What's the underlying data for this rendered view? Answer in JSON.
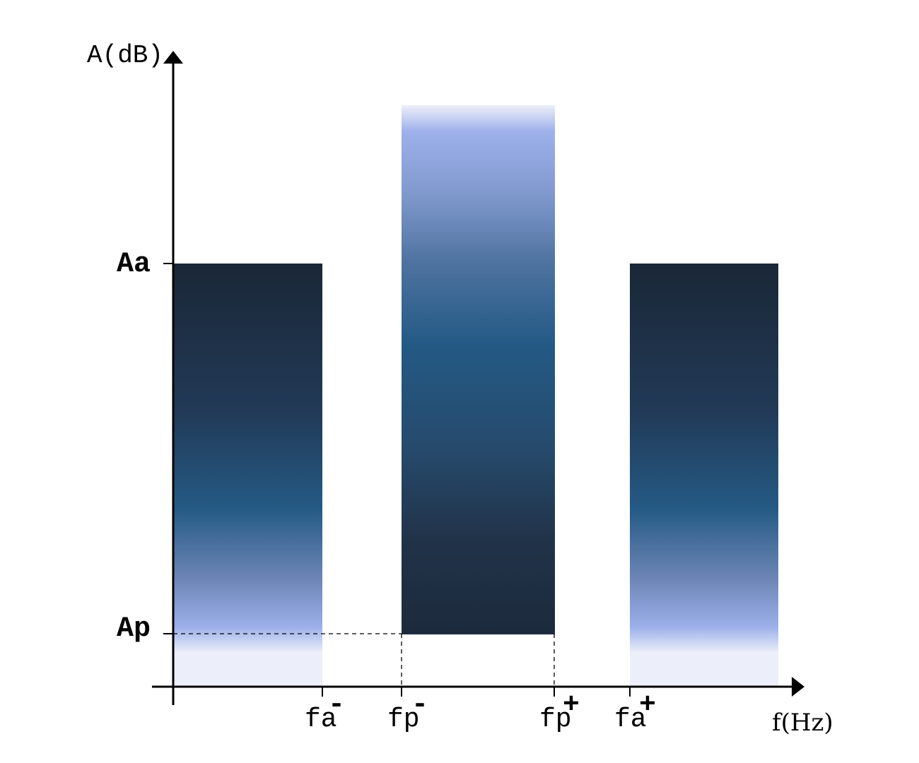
{
  "axes": {
    "y_label": "A(dB)",
    "x_label": "f(Hz)"
  },
  "levels": {
    "aa": "Aa",
    "ap": "Ap"
  },
  "frequencies": {
    "fa_minus": {
      "base": "fa",
      "sup": "-"
    },
    "fp_minus": {
      "base": "fp",
      "sup": "-"
    },
    "fp_plus": {
      "base": "fp",
      "sup": "+"
    },
    "fa_plus": {
      "base": "fa",
      "sup": "+"
    }
  },
  "colors": {
    "dark": "#1b2838",
    "mid": "#245a85",
    "light": "#9db0ea",
    "pale": "#eceff9"
  }
}
